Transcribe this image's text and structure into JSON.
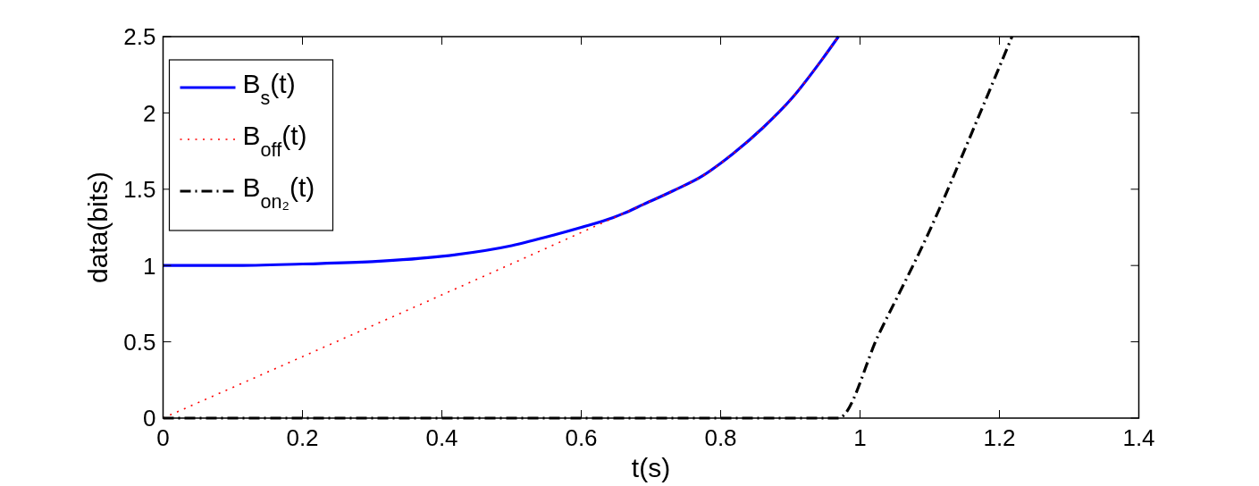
{
  "chart_data": {
    "type": "line",
    "xlabel": "t(s)",
    "ylabel": "data(bits)",
    "xlim": [
      0,
      1.4
    ],
    "xticks": [
      0,
      0.2,
      0.4,
      0.6,
      0.8,
      1,
      1.2,
      1.4
    ],
    "ylim": [
      0,
      2.5
    ],
    "yticks": [
      0,
      0.5,
      1,
      1.5,
      2,
      2.5
    ],
    "grid": false,
    "legend": "top left",
    "series": [
      {
        "name": "B$_{s}$(t)",
        "color": "#0000ff",
        "line_style": "solid",
        "x": [
          0,
          0.1,
          0.2,
          0.3,
          0.4,
          0.5,
          0.561,
          0.6,
          0.646,
          0.66,
          0.689,
          0.732,
          0.775,
          0.8,
          0.817,
          0.86,
          0.903,
          0.9455,
          0.969
        ],
        "values": [
          1,
          1,
          1.01,
          1.025,
          1.06,
          1.13,
          1.2,
          1.25,
          1.315,
          1.34,
          1.4,
          1.49,
          1.59,
          1.67,
          1.73,
          1.9,
          2.1,
          2.35,
          2.5
        ]
      },
      {
        "name": "B$_{off}$(t)",
        "color": "#ff0000",
        "line_style": "dotted",
        "x": [
          0,
          0.66,
          0.689,
          0.732,
          0.775,
          0.8,
          0.817,
          0.86,
          0.903,
          0.9455,
          0.969
        ],
        "values": [
          0,
          1.34,
          1.4,
          1.49,
          1.59,
          1.67,
          1.73,
          1.9,
          2.1,
          2.35,
          2.5
        ]
      },
      {
        "name": "B$_{on₂}$(t)",
        "color": "#000000",
        "line_style": "dashdot",
        "x": [
          0,
          0.969,
          1.027,
          1.099,
          1.176,
          1.218
        ],
        "values": [
          0,
          0,
          0.55,
          1.22,
          2.04,
          2.5
        ]
      }
    ]
  }
}
